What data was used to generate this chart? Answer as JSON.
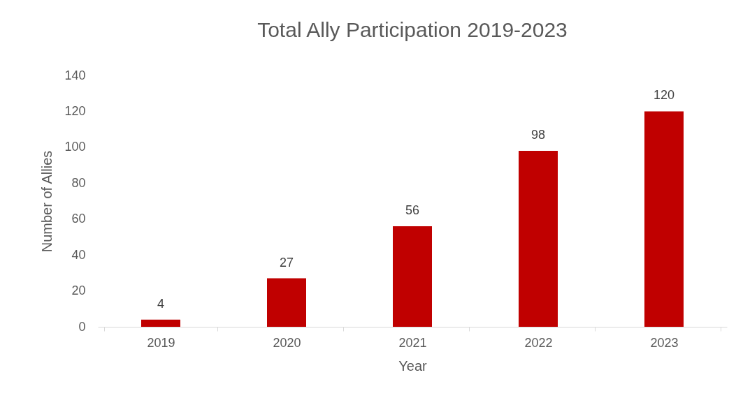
{
  "chart_data": {
    "type": "bar",
    "title": "Total Ally Participation 2019-2023",
    "xlabel": "Year",
    "ylabel": "Number of Allies",
    "categories": [
      "2019",
      "2020",
      "2021",
      "2022",
      "2023"
    ],
    "values": [
      4,
      27,
      56,
      98,
      120
    ],
    "color": "#c00000",
    "ylim": [
      0,
      140
    ],
    "yticks": [
      0,
      20,
      40,
      60,
      80,
      100,
      120,
      140
    ],
    "grid": false,
    "data_labels": true
  }
}
